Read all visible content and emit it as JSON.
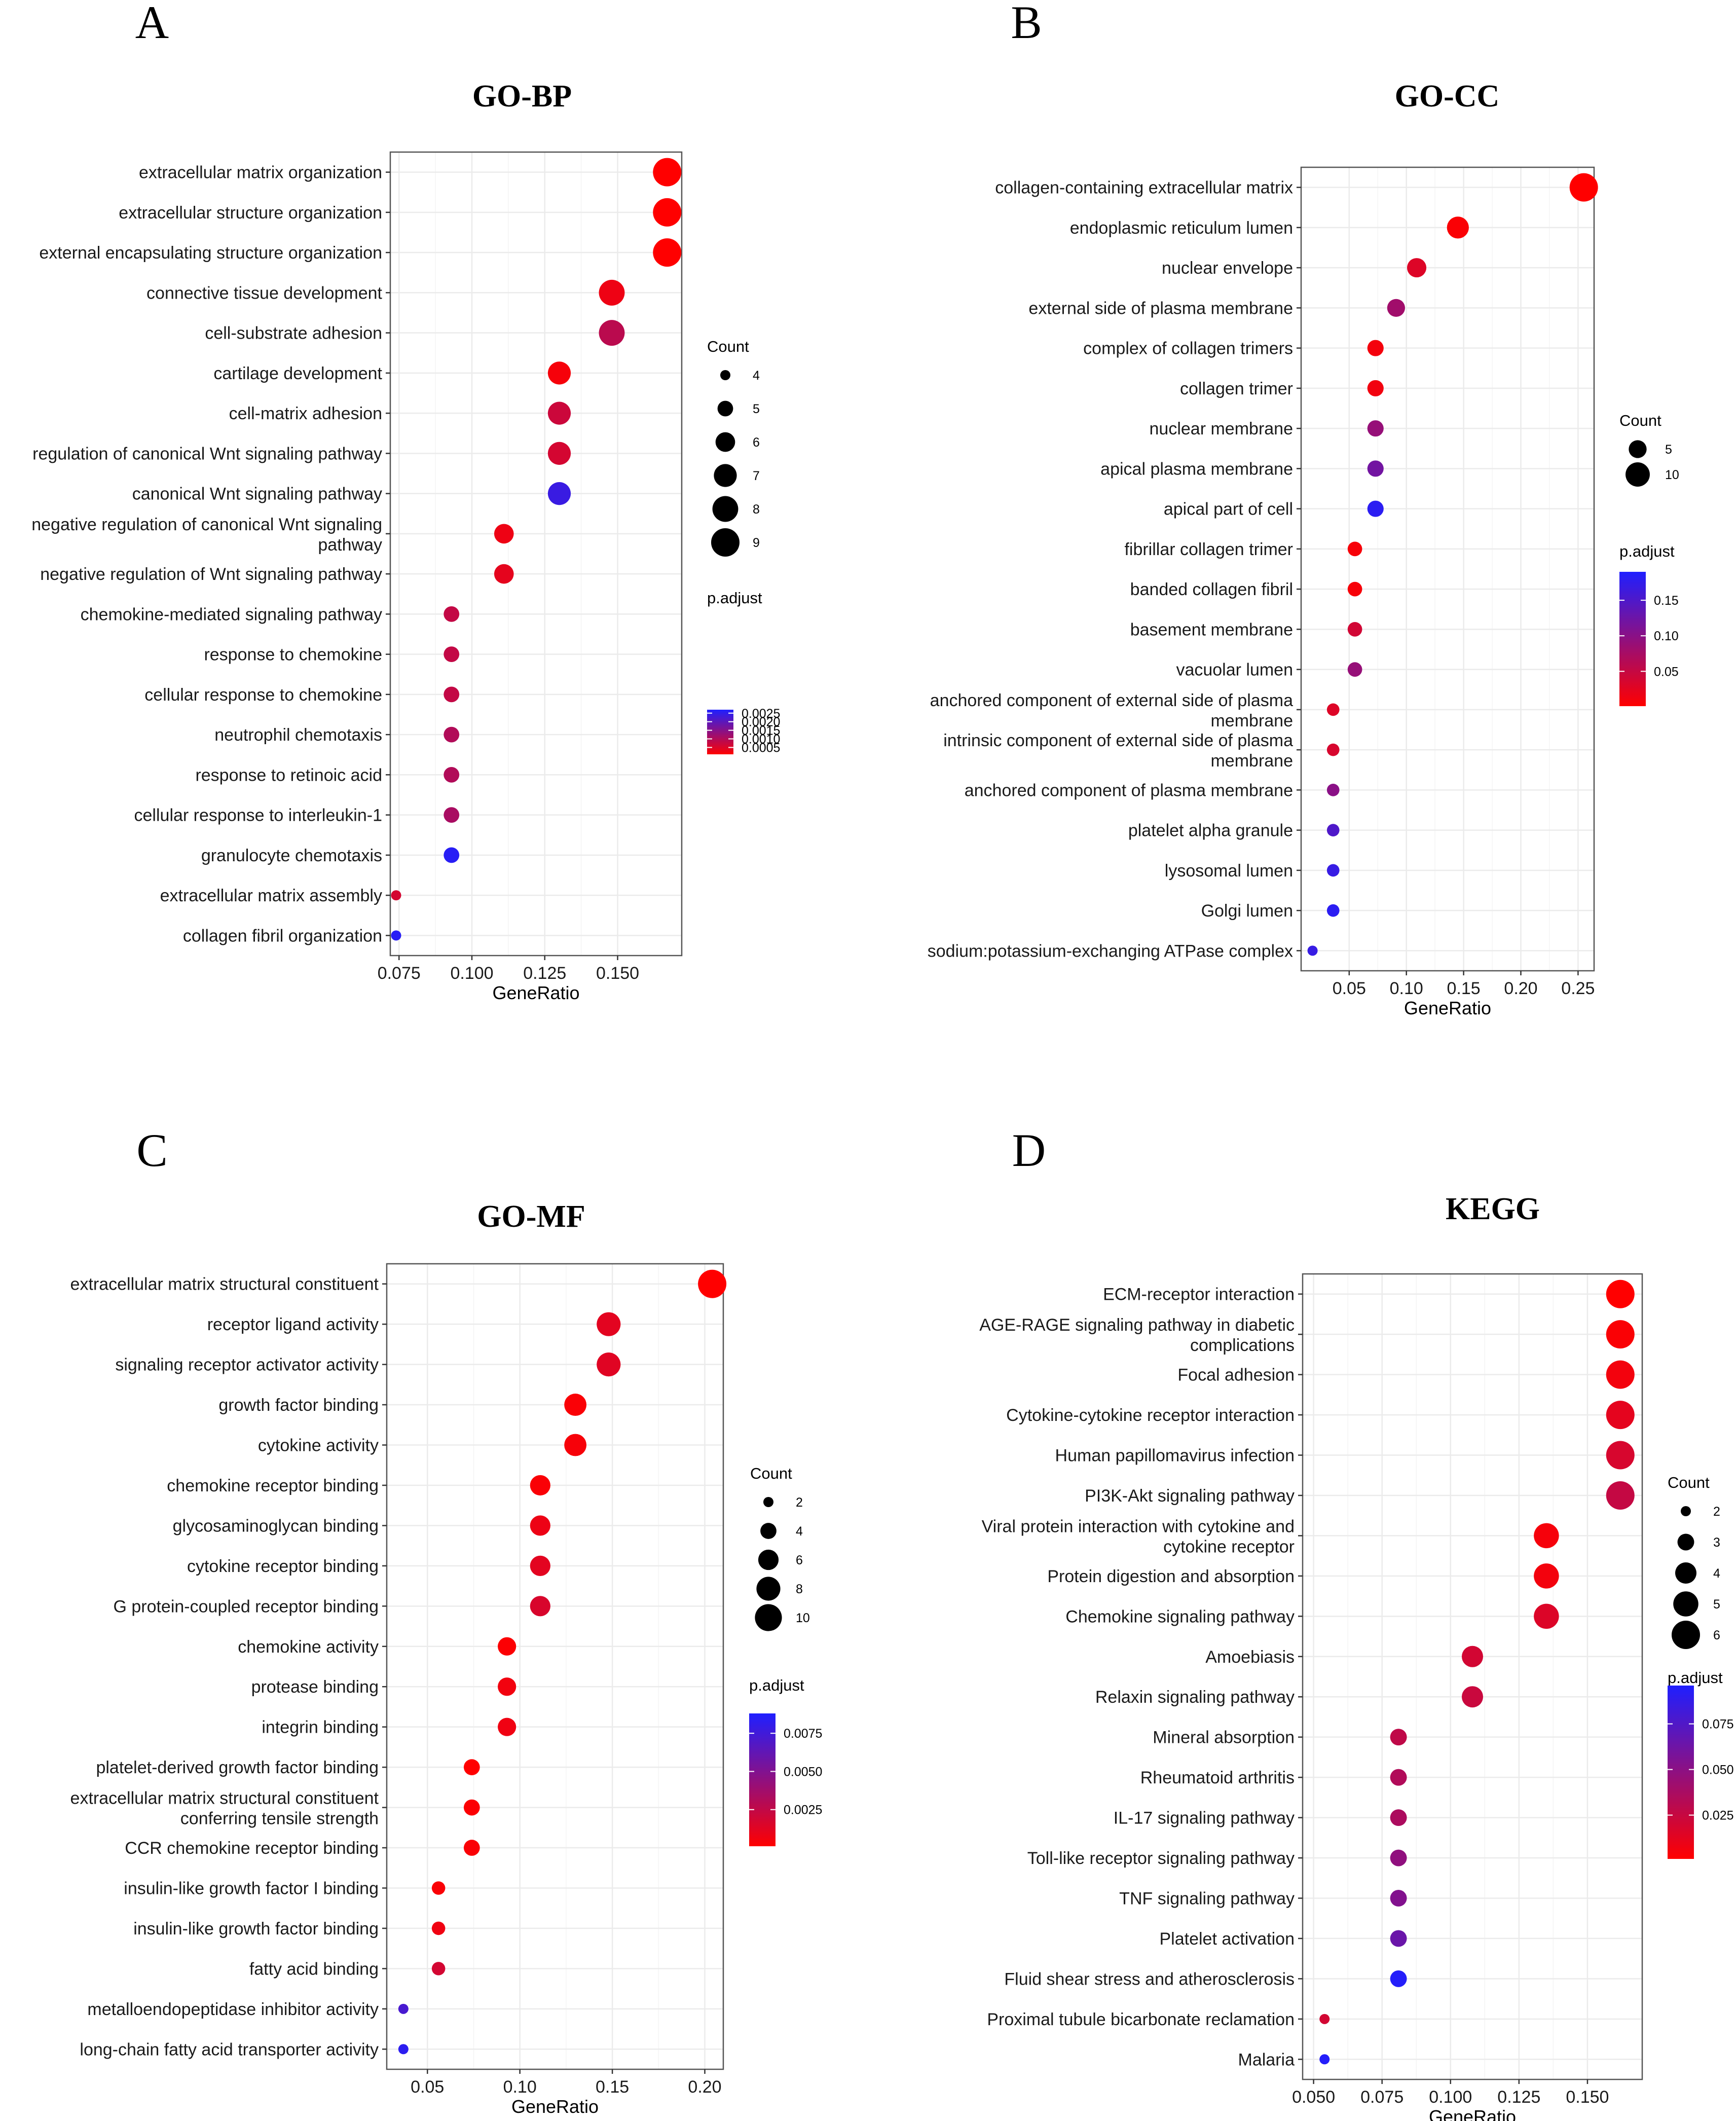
{
  "colors": {
    "low": "#ff0000",
    "high": "#1f1fff",
    "grid": "#ebebeb",
    "frame": "#555555",
    "point_stroke": "#ffffff"
  },
  "chart_data": [
    {
      "letter": "A",
      "type": "scatter",
      "title": "GO-BP",
      "xlabel": "GeneRatio",
      "ylabel": "",
      "xlim": [
        0.072,
        0.172
      ],
      "xticks": [
        0.075,
        0.1,
        0.125,
        0.15
      ],
      "xtick_labels": [
        "0.075",
        "0.100",
        "0.125",
        "0.150"
      ],
      "size_title": "Count",
      "size_range": [
        4,
        9
      ],
      "size_legend": [
        4,
        5,
        6,
        7,
        8,
        9
      ],
      "color_title": "p.adjust",
      "color_range": [
        0.0001,
        0.0027
      ],
      "color_legend": [
        0.0025,
        0.002,
        0.0015,
        0.001,
        0.0005
      ],
      "color_legend_labels": [
        "0.0025",
        "0.0020",
        "0.0015",
        "0.0010",
        "0.0005"
      ],
      "rows": [
        {
          "label": [
            "extracellular matrix organization"
          ],
          "x": 0.167,
          "count": 9,
          "p": 0.0001
        },
        {
          "label": [
            "extracellular structure organization"
          ],
          "x": 0.167,
          "count": 9,
          "p": 0.0001
        },
        {
          "label": [
            "external encapsulating structure organization"
          ],
          "x": 0.167,
          "count": 9,
          "p": 0.0001
        },
        {
          "label": [
            "connective tissue development"
          ],
          "x": 0.148,
          "count": 8,
          "p": 0.0003
        },
        {
          "label": [
            "cell-substrate adhesion"
          ],
          "x": 0.148,
          "count": 8,
          "p": 0.0009
        },
        {
          "label": [
            "cartilage development"
          ],
          "x": 0.13,
          "count": 7,
          "p": 0.0002
        },
        {
          "label": [
            "cell-matrix adhesion"
          ],
          "x": 0.13,
          "count": 7,
          "p": 0.0007
        },
        {
          "label": [
            "regulation of canonical Wnt signaling pathway"
          ],
          "x": 0.13,
          "count": 7,
          "p": 0.0006
        },
        {
          "label": [
            "canonical Wnt signaling pathway"
          ],
          "x": 0.13,
          "count": 7,
          "p": 0.0024
        },
        {
          "label": [
            "negative regulation of canonical Wnt signaling",
            "pathway"
          ],
          "x": 0.111,
          "count": 6,
          "p": 0.0003
        },
        {
          "label": [
            "negative regulation of Wnt signaling pathway"
          ],
          "x": 0.111,
          "count": 6,
          "p": 0.0004
        },
        {
          "label": [
            "chemokine-mediated signaling pathway"
          ],
          "x": 0.093,
          "count": 5,
          "p": 0.0008
        },
        {
          "label": [
            "response to chemokine"
          ],
          "x": 0.093,
          "count": 5,
          "p": 0.0008
        },
        {
          "label": [
            "cellular response to chemokine"
          ],
          "x": 0.093,
          "count": 5,
          "p": 0.0008
        },
        {
          "label": [
            "neutrophil chemotaxis"
          ],
          "x": 0.093,
          "count": 5,
          "p": 0.001
        },
        {
          "label": [
            "response to retinoic acid"
          ],
          "x": 0.093,
          "count": 5,
          "p": 0.001
        },
        {
          "label": [
            "cellular response to interleukin-1"
          ],
          "x": 0.093,
          "count": 5,
          "p": 0.0011
        },
        {
          "label": [
            "granulocyte chemotaxis"
          ],
          "x": 0.093,
          "count": 5,
          "p": 0.0026
        },
        {
          "label": [
            "extracellular matrix assembly"
          ],
          "x": 0.074,
          "count": 4,
          "p": 0.0006
        },
        {
          "label": [
            "collagen fibril organization"
          ],
          "x": 0.074,
          "count": 4,
          "p": 0.0026
        }
      ]
    },
    {
      "letter": "B",
      "type": "scatter",
      "title": "GO-CC",
      "xlabel": "GeneRatio",
      "ylabel": "",
      "xlim": [
        0.008,
        0.264
      ],
      "xticks": [
        0.05,
        0.1,
        0.15,
        0.2,
        0.25
      ],
      "xtick_labels": [
        "0.05",
        "0.10",
        "0.15",
        "0.20",
        "0.25"
      ],
      "size_title": "Count",
      "size_range": [
        1,
        14
      ],
      "size_legend": [
        5,
        10
      ],
      "color_title": "p.adjust",
      "color_range": [
        0.001,
        0.19
      ],
      "color_legend": [
        0.15,
        0.1,
        0.05
      ],
      "color_legend_labels": [
        "0.15",
        "0.10",
        "0.05"
      ],
      "rows": [
        {
          "label": [
            "collagen-containing extracellular matrix"
          ],
          "x": 0.255,
          "count": 14,
          "p": 0.001
        },
        {
          "label": [
            "endoplasmic reticulum lumen"
          ],
          "x": 0.145,
          "count": 8,
          "p": 0.005
        },
        {
          "label": [
            "nuclear envelope"
          ],
          "x": 0.109,
          "count": 6,
          "p": 0.03
        },
        {
          "label": [
            "external side of plasma membrane"
          ],
          "x": 0.091,
          "count": 5,
          "p": 0.08
        },
        {
          "label": [
            "complex of collagen trimers"
          ],
          "x": 0.073,
          "count": 4,
          "p": 0.01
        },
        {
          "label": [
            "collagen trimer"
          ],
          "x": 0.073,
          "count": 4,
          "p": 0.012
        },
        {
          "label": [
            "nuclear membrane"
          ],
          "x": 0.073,
          "count": 4,
          "p": 0.09
        },
        {
          "label": [
            "apical plasma membrane"
          ],
          "x": 0.073,
          "count": 4,
          "p": 0.12
        },
        {
          "label": [
            "apical part of cell"
          ],
          "x": 0.073,
          "count": 4,
          "p": 0.18
        },
        {
          "label": [
            "fibrillar collagen trimer"
          ],
          "x": 0.055,
          "count": 3,
          "p": 0.008
        },
        {
          "label": [
            "banded collagen fibril"
          ],
          "x": 0.055,
          "count": 3,
          "p": 0.008
        },
        {
          "label": [
            "basement membrane"
          ],
          "x": 0.055,
          "count": 3,
          "p": 0.04
        },
        {
          "label": [
            "vacuolar lumen"
          ],
          "x": 0.055,
          "count": 3,
          "p": 0.09
        },
        {
          "label": [
            "anchored component of external side of plasma",
            "membrane"
          ],
          "x": 0.036,
          "count": 2,
          "p": 0.03
        },
        {
          "label": [
            "intrinsic component of external side of plasma",
            "membrane"
          ],
          "x": 0.036,
          "count": 2,
          "p": 0.035
        },
        {
          "label": [
            "anchored component of plasma membrane"
          ],
          "x": 0.036,
          "count": 2,
          "p": 0.1
        },
        {
          "label": [
            "platelet alpha granule"
          ],
          "x": 0.036,
          "count": 2,
          "p": 0.15
        },
        {
          "label": [
            "lysosomal lumen"
          ],
          "x": 0.036,
          "count": 2,
          "p": 0.17
        },
        {
          "label": [
            "Golgi lumen"
          ],
          "x": 0.036,
          "count": 2,
          "p": 0.18
        },
        {
          "label": [
            "sodium:potassium-exchanging ATPase complex"
          ],
          "x": 0.018,
          "count": 1,
          "p": 0.17
        }
      ]
    },
    {
      "letter": "C",
      "type": "scatter",
      "title": "GO-MF",
      "xlabel": "GeneRatio",
      "ylabel": "",
      "xlim": [
        0.028,
        0.21
      ],
      "xticks": [
        0.05,
        0.1,
        0.15,
        0.2
      ],
      "xtick_labels": [
        "0.05",
        "0.10",
        "0.15",
        "0.20"
      ],
      "size_title": "Count",
      "size_range": [
        2,
        11
      ],
      "size_legend": [
        2,
        4,
        6,
        8,
        10
      ],
      "color_title": "p.adjust",
      "color_range": [
        0.0001,
        0.0088
      ],
      "color_legend": [
        0.0075,
        0.005,
        0.0025
      ],
      "color_legend_labels": [
        "0.0075",
        "0.0050",
        "0.0025"
      ],
      "rows": [
        {
          "label": [
            "extracellular matrix structural constituent"
          ],
          "x": 0.204,
          "count": 11,
          "p": 0.0001
        },
        {
          "label": [
            "receptor ligand activity"
          ],
          "x": 0.148,
          "count": 8,
          "p": 0.0012
        },
        {
          "label": [
            "signaling receptor activator activity"
          ],
          "x": 0.148,
          "count": 8,
          "p": 0.0013
        },
        {
          "label": [
            "growth factor binding"
          ],
          "x": 0.13,
          "count": 7,
          "p": 0.0003
        },
        {
          "label": [
            "cytokine activity"
          ],
          "x": 0.13,
          "count": 7,
          "p": 0.0004
        },
        {
          "label": [
            "chemokine receptor binding"
          ],
          "x": 0.111,
          "count": 6,
          "p": 0.0003
        },
        {
          "label": [
            "glycosaminoglycan binding"
          ],
          "x": 0.111,
          "count": 6,
          "p": 0.0008
        },
        {
          "label": [
            "cytokine receptor binding"
          ],
          "x": 0.111,
          "count": 6,
          "p": 0.0012
        },
        {
          "label": [
            "G protein-coupled receptor binding"
          ],
          "x": 0.111,
          "count": 6,
          "p": 0.0016
        },
        {
          "label": [
            "chemokine activity"
          ],
          "x": 0.093,
          "count": 5,
          "p": 0.0002
        },
        {
          "label": [
            "protease binding"
          ],
          "x": 0.093,
          "count": 5,
          "p": 0.0006
        },
        {
          "label": [
            "integrin binding"
          ],
          "x": 0.093,
          "count": 5,
          "p": 0.0007
        },
        {
          "label": [
            "platelet-derived growth factor binding"
          ],
          "x": 0.074,
          "count": 4,
          "p": 0.0001
        },
        {
          "label": [
            "extracellular matrix structural constituent",
            "conferring tensile strength"
          ],
          "x": 0.074,
          "count": 4,
          "p": 0.0002
        },
        {
          "label": [
            "CCR chemokine receptor binding"
          ],
          "x": 0.074,
          "count": 4,
          "p": 0.0003
        },
        {
          "label": [
            "insulin-like growth factor I binding"
          ],
          "x": 0.056,
          "count": 3,
          "p": 0.0003
        },
        {
          "label": [
            "insulin-like growth factor binding"
          ],
          "x": 0.056,
          "count": 3,
          "p": 0.0007
        },
        {
          "label": [
            "fatty acid binding"
          ],
          "x": 0.056,
          "count": 3,
          "p": 0.0018
        },
        {
          "label": [
            "metalloendopeptidase inhibitor activity"
          ],
          "x": 0.037,
          "count": 2,
          "p": 0.0072
        },
        {
          "label": [
            "long-chain fatty acid transporter activity"
          ],
          "x": 0.037,
          "count": 2,
          "p": 0.0083
        }
      ]
    },
    {
      "letter": "D",
      "type": "scatter",
      "title": "KEGG",
      "xlabel": "GeneRatio",
      "ylabel": "",
      "xlim": [
        0.046,
        0.17
      ],
      "xticks": [
        0.05,
        0.075,
        0.1,
        0.125,
        0.15
      ],
      "xtick_labels": [
        "0.050",
        "0.075",
        "0.100",
        "0.125",
        "0.150"
      ],
      "size_title": "Count",
      "size_range": [
        2,
        6
      ],
      "size_legend": [
        2,
        3,
        4,
        5,
        6
      ],
      "color_title": "p.adjust",
      "color_range": [
        0.001,
        0.096
      ],
      "color_legend": [
        0.075,
        0.05,
        0.025
      ],
      "color_legend_labels": [
        "0.075",
        "0.050",
        "0.025"
      ],
      "rows": [
        {
          "label": [
            "ECM-receptor interaction"
          ],
          "x": 0.162,
          "count": 6,
          "p": 0.001
        },
        {
          "label": [
            "AGE-RAGE signaling pathway in diabetic",
            "complications"
          ],
          "x": 0.162,
          "count": 6,
          "p": 0.003
        },
        {
          "label": [
            "Focal adhesion"
          ],
          "x": 0.162,
          "count": 6,
          "p": 0.006
        },
        {
          "label": [
            "Cytokine-cytokine receptor interaction"
          ],
          "x": 0.162,
          "count": 6,
          "p": 0.012
        },
        {
          "label": [
            "Human papillomavirus infection"
          ],
          "x": 0.162,
          "count": 6,
          "p": 0.018
        },
        {
          "label": [
            "PI3K-Akt signaling pathway"
          ],
          "x": 0.162,
          "count": 6,
          "p": 0.026
        },
        {
          "label": [
            "Viral protein interaction with cytokine and",
            "cytokine receptor"
          ],
          "x": 0.135,
          "count": 5,
          "p": 0.005
        },
        {
          "label": [
            "Protein digestion and absorption"
          ],
          "x": 0.135,
          "count": 5,
          "p": 0.006
        },
        {
          "label": [
            "Chemokine signaling pathway"
          ],
          "x": 0.135,
          "count": 5,
          "p": 0.016
        },
        {
          "label": [
            "Amoebiasis"
          ],
          "x": 0.108,
          "count": 4,
          "p": 0.02
        },
        {
          "label": [
            "Relaxin signaling pathway"
          ],
          "x": 0.108,
          "count": 4,
          "p": 0.024
        },
        {
          "label": [
            "Mineral absorption"
          ],
          "x": 0.081,
          "count": 3,
          "p": 0.028
        },
        {
          "label": [
            "Rheumatoid arthritis"
          ],
          "x": 0.081,
          "count": 3,
          "p": 0.034
        },
        {
          "label": [
            "IL-17 signaling pathway"
          ],
          "x": 0.081,
          "count": 3,
          "p": 0.036
        },
        {
          "label": [
            "Toll-like receptor signaling pathway"
          ],
          "x": 0.081,
          "count": 3,
          "p": 0.048
        },
        {
          "label": [
            "TNF signaling pathway"
          ],
          "x": 0.081,
          "count": 3,
          "p": 0.054
        },
        {
          "label": [
            "Platelet activation"
          ],
          "x": 0.081,
          "count": 3,
          "p": 0.064
        },
        {
          "label": [
            "Fluid shear stress and atherosclerosis"
          ],
          "x": 0.081,
          "count": 3,
          "p": 0.094
        },
        {
          "label": [
            "Proximal tubule bicarbonate reclamation"
          ],
          "x": 0.054,
          "count": 2,
          "p": 0.02
        },
        {
          "label": [
            "Malaria"
          ],
          "x": 0.054,
          "count": 2,
          "p": 0.094
        }
      ]
    }
  ]
}
